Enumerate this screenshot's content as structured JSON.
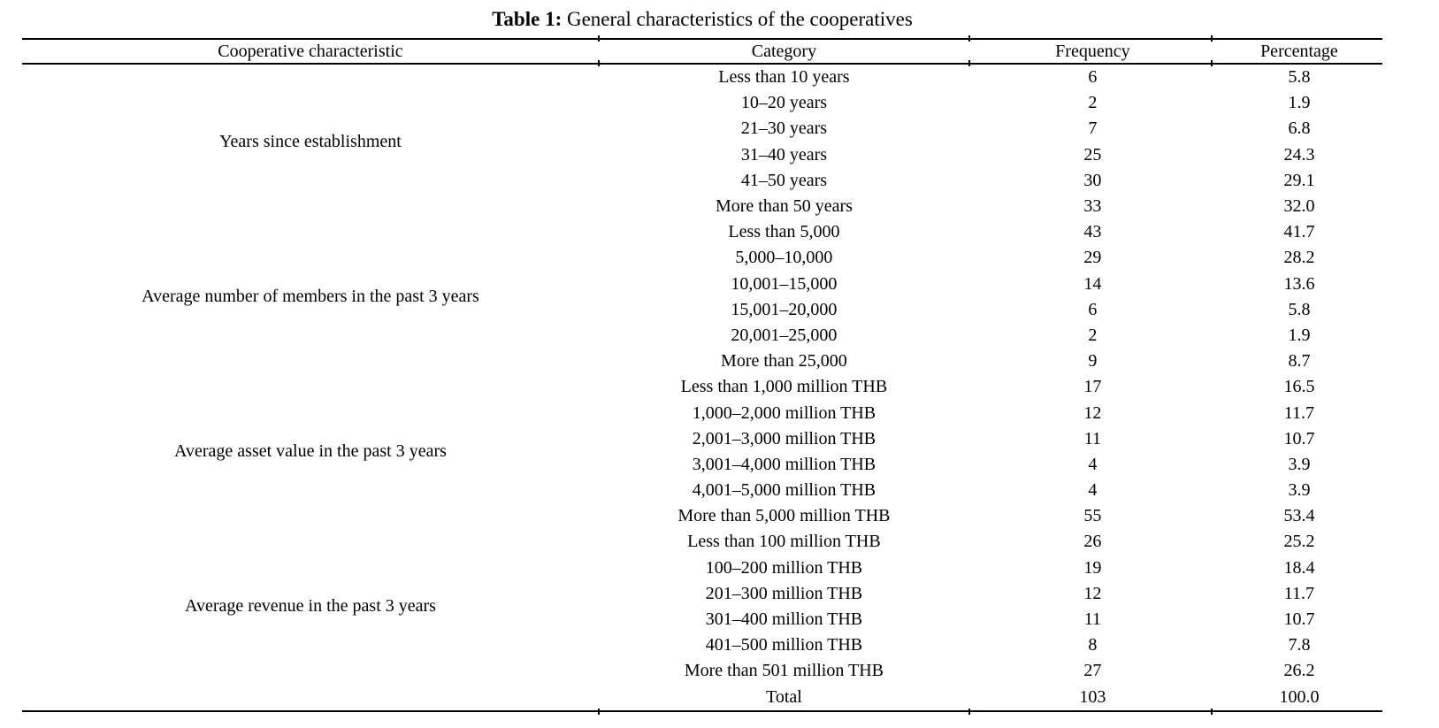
{
  "caption": {
    "label": "Table 1:",
    "text": " General characteristics of the cooperatives"
  },
  "table": {
    "columns": [
      "Cooperative characteristic",
      "Category",
      "Frequency",
      "Percentage"
    ],
    "groups": [
      {
        "characteristic": "Years since establishment",
        "rows": [
          {
            "category": "Less than 10 years",
            "frequency": "6",
            "percentage": "5.8"
          },
          {
            "category": "10–20 years",
            "frequency": "2",
            "percentage": "1.9"
          },
          {
            "category": "21–30 years",
            "frequency": "7",
            "percentage": "6.8"
          },
          {
            "category": "31–40 years",
            "frequency": "25",
            "percentage": "24.3"
          },
          {
            "category": "41–50 years",
            "frequency": "30",
            "percentage": "29.1"
          },
          {
            "category": "More than 50 years",
            "frequency": "33",
            "percentage": "32.0"
          }
        ]
      },
      {
        "characteristic": "Average number of members in the past 3 years",
        "rows": [
          {
            "category": "Less than 5,000",
            "frequency": "43",
            "percentage": "41.7"
          },
          {
            "category": "5,000–10,000",
            "frequency": "29",
            "percentage": "28.2"
          },
          {
            "category": "10,001–15,000",
            "frequency": "14",
            "percentage": "13.6"
          },
          {
            "category": "15,001–20,000",
            "frequency": "6",
            "percentage": "5.8"
          },
          {
            "category": "20,001–25,000",
            "frequency": "2",
            "percentage": "1.9"
          },
          {
            "category": "More than 25,000",
            "frequency": "9",
            "percentage": "8.7"
          }
        ]
      },
      {
        "characteristic": "Average asset value in the past 3 years",
        "rows": [
          {
            "category": "Less than 1,000 million THB",
            "frequency": "17",
            "percentage": "16.5"
          },
          {
            "category": "1,000–2,000 million THB",
            "frequency": "12",
            "percentage": "11.7"
          },
          {
            "category": "2,001–3,000 million THB",
            "frequency": "11",
            "percentage": "10.7"
          },
          {
            "category": "3,001–4,000 million THB",
            "frequency": "4",
            "percentage": "3.9"
          },
          {
            "category": "4,001–5,000 million THB",
            "frequency": "4",
            "percentage": "3.9"
          },
          {
            "category": "More than 5,000 million THB",
            "frequency": "55",
            "percentage": "53.4"
          }
        ]
      },
      {
        "characteristic": "Average revenue in the past 3 years",
        "rows": [
          {
            "category": "Less than 100 million THB",
            "frequency": "26",
            "percentage": "25.2"
          },
          {
            "category": "100–200 million THB",
            "frequency": "19",
            "percentage": "18.4"
          },
          {
            "category": "201–300 million THB",
            "frequency": "12",
            "percentage": "11.7"
          },
          {
            "category": "301–400 million THB",
            "frequency": "11",
            "percentage": "10.7"
          },
          {
            "category": "401–500 million THB",
            "frequency": "8",
            "percentage": "7.8"
          },
          {
            "category": "More than 501 million THB",
            "frequency": "27",
            "percentage": "26.2"
          }
        ]
      }
    ],
    "total": {
      "label": "Total",
      "frequency": "103",
      "percentage": "100.0"
    },
    "line_color": "#000000",
    "text_color": "#000000",
    "background_color": "#ffffff"
  }
}
